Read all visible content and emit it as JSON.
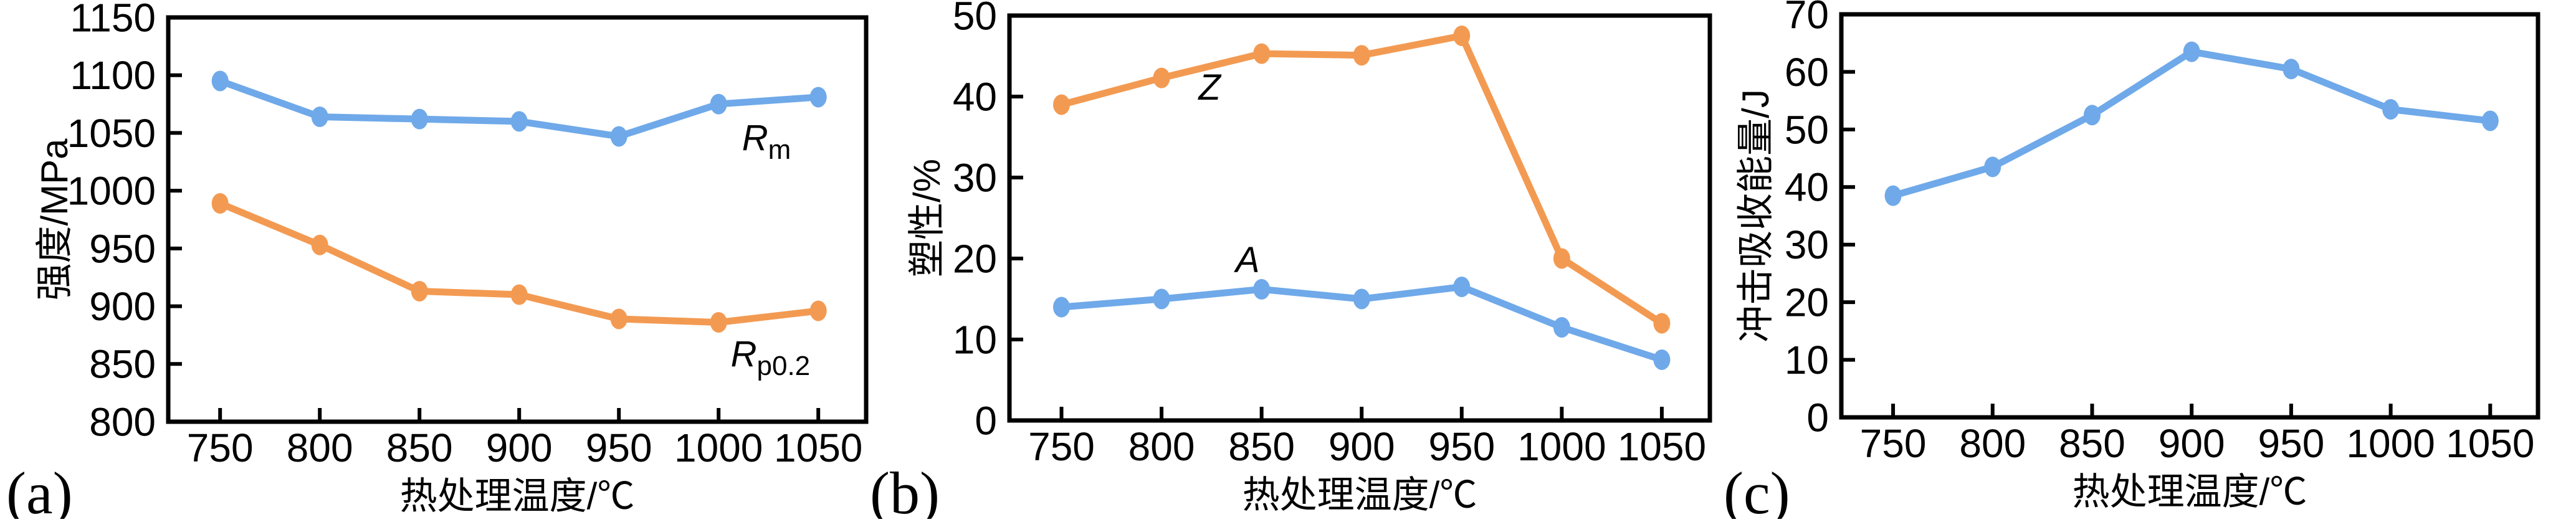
{
  "figure": {
    "background": "#ffffff",
    "axis_color": "#000000",
    "series_colors": {
      "blue": "#6FA9E9",
      "orange": "#F39A52"
    }
  },
  "chart_data": [
    {
      "type": "line",
      "panel_label": "(a)",
      "xlabel": "热处理温度/℃",
      "ylabel": "强度/MPa",
      "x": [
        750,
        800,
        850,
        900,
        950,
        1000,
        1050
      ],
      "xticks": [
        750,
        800,
        850,
        900,
        950,
        1000,
        1050
      ],
      "xlim": [
        724,
        1074
      ],
      "ylim": [
        800,
        1150
      ],
      "yticks": [
        800,
        850,
        900,
        950,
        1000,
        1050,
        1100,
        1150
      ],
      "grid": false,
      "legend_position": "inline-curve-labels",
      "series": [
        {
          "name": "Rm",
          "color": "#6FA9E9",
          "values": [
            1095,
            1064,
            1062,
            1060,
            1047,
            1075,
            1081
          ],
          "label": {
            "main": "R",
            "sub": "m",
            "x": 1024,
            "y": 1035
          }
        },
        {
          "name": "Rp0.2",
          "color": "#F39A52",
          "values": [
            989,
            953,
            913,
            910,
            889,
            886,
            896
          ],
          "label": {
            "main": "R",
            "sub": "p0.2",
            "x": 1026,
            "y": 848
          }
        }
      ]
    },
    {
      "type": "line",
      "panel_label": "(b)",
      "xlabel": "热处理温度/℃",
      "ylabel": "塑性/%",
      "x": [
        750,
        800,
        850,
        900,
        950,
        1000,
        1050
      ],
      "xticks": [
        750,
        800,
        850,
        900,
        950,
        1000,
        1050
      ],
      "xlim": [
        724,
        1074
      ],
      "ylim": [
        0,
        50
      ],
      "yticks": [
        0,
        10,
        20,
        30,
        40,
        50
      ],
      "grid": false,
      "legend_position": "inline-curve-labels",
      "series": [
        {
          "name": "Z",
          "color": "#F39A52",
          "values": [
            39,
            42.3,
            45.3,
            45.1,
            47.5,
            20,
            12
          ],
          "label": {
            "main": "Z",
            "sub": "",
            "x": 824,
            "y": 39.6
          }
        },
        {
          "name": "A",
          "color": "#6FA9E9",
          "values": [
            14,
            15,
            16.2,
            15,
            16.5,
            11.5,
            7.5
          ],
          "label": {
            "main": "A",
            "sub": "",
            "x": 843,
            "y": 18.3
          }
        }
      ]
    },
    {
      "type": "line",
      "panel_label": "(c)",
      "xlabel": "热处理温度/℃",
      "ylabel": "冲击吸收能量/J",
      "x": [
        750,
        800,
        850,
        900,
        950,
        1000,
        1050
      ],
      "xticks": [
        750,
        800,
        850,
        900,
        950,
        1000,
        1050
      ],
      "xlim": [
        724,
        1074
      ],
      "ylim": [
        0,
        70
      ],
      "yticks": [
        0,
        10,
        20,
        30,
        40,
        50,
        60,
        70
      ],
      "grid": false,
      "legend_position": "none",
      "series": [
        {
          "name": "impact-absorbed-energy",
          "color": "#6FA9E9",
          "values": [
            38.5,
            43.5,
            52.5,
            63.5,
            60.5,
            53.5,
            51.5
          ]
        }
      ]
    }
  ]
}
